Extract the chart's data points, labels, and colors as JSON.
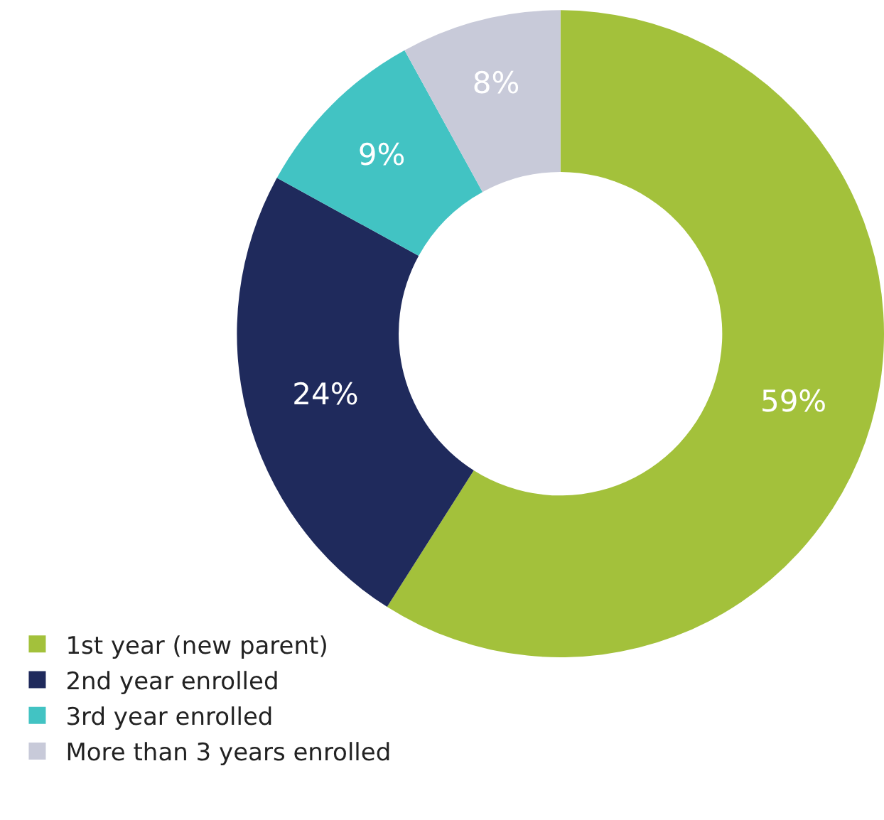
{
  "chart_data": {
    "type": "donut",
    "categories": [
      "1st year (new parent)",
      "2nd year enrolled",
      "3rd year enrolled",
      "More than 3 years enrolled"
    ],
    "values": [
      59,
      24,
      9,
      8
    ],
    "value_labels": [
      "59%",
      "24%",
      "9%",
      "8%"
    ],
    "colors": [
      "#a3c13b",
      "#1f2a5c",
      "#42c3c3",
      "#c8cad9"
    ],
    "legend": "bottom left"
  }
}
